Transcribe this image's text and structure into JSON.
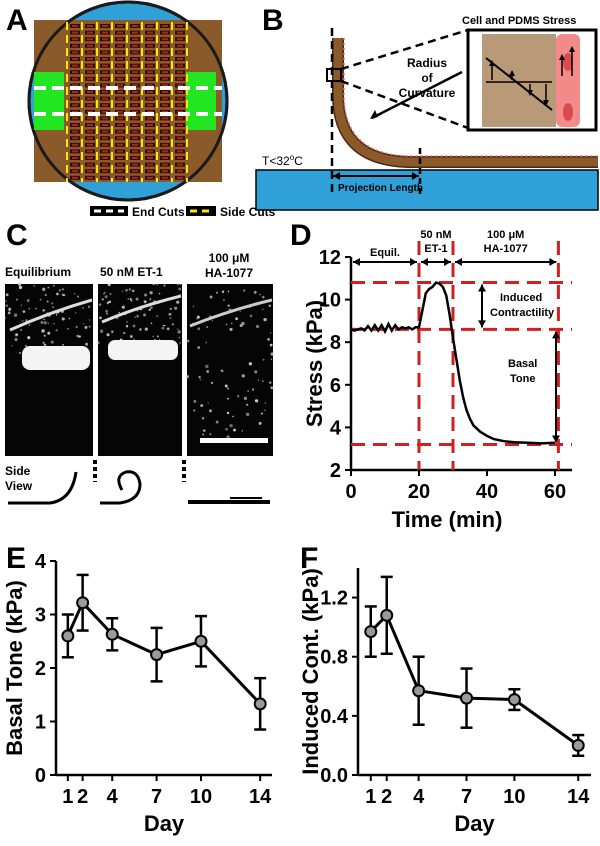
{
  "panels": {
    "a": "A",
    "b": "B",
    "c": "C",
    "d": "D",
    "e": "E",
    "f": "F"
  },
  "colors": {
    "brown": "#8a5a2b",
    "green": "#23e623",
    "blue": "#2fa0d8",
    "red": "#d21f1f",
    "yellow": "#ffe600",
    "pink": "#f28a8a",
    "tan": "#b89a78"
  },
  "panel_a": {
    "legend_end": "End Cuts",
    "legend_side": "Side Cuts"
  },
  "panel_b": {
    "inset_title": "Cell and PDMS Stress",
    "radius_l1": "Radius",
    "radius_l2": "of",
    "radius_l3": "Curvature",
    "temp": "T<32",
    "temp_sup": "o",
    "temp_unit": "C",
    "projection": "Projection Length"
  },
  "panel_c": {
    "lbl_equil": "Equilibrium",
    "lbl_et1": "50 nM ET-1",
    "lbl_ha_l1": "100 μM",
    "lbl_ha_l2": "HA-1077",
    "side_l1": "Side",
    "side_l2": "View"
  },
  "panel_d": {
    "phase_equil": "Equil.",
    "phase_et1_l1": "50 nM",
    "phase_et1_l2": "ET-1",
    "phase_ha_l1": "100 μM",
    "phase_ha_l2": "HA-1077",
    "induced_l1": "Induced",
    "induced_l2": "Contractility",
    "basal_l1": "Basal",
    "basal_l2": "Tone"
  },
  "chart_data": [
    {
      "type": "line",
      "panel": "D",
      "xlabel": "Time (min)",
      "ylabel": "Stress (kPa)",
      "xlim": [
        0,
        65
      ],
      "ylim": [
        2,
        12
      ],
      "xticks": [
        0,
        20,
        40,
        60
      ],
      "yticks": [
        2,
        4,
        6,
        8,
        10,
        12
      ],
      "x": [
        0,
        1,
        2,
        3,
        4,
        5,
        6,
        7,
        8,
        9,
        10,
        11,
        12,
        13,
        14,
        15,
        16,
        17,
        18,
        19,
        20,
        21,
        22,
        23,
        24,
        25,
        26,
        27,
        28,
        29,
        30,
        31,
        32,
        33,
        34,
        35,
        36,
        38,
        40,
        42,
        45,
        48,
        52,
        56,
        60
      ],
      "y": [
        8.6,
        8.55,
        8.6,
        8.65,
        8.55,
        8.75,
        8.55,
        8.8,
        8.55,
        8.8,
        8.5,
        8.85,
        8.55,
        8.8,
        8.6,
        8.7,
        8.65,
        8.7,
        8.6,
        8.7,
        8.7,
        9.5,
        10.3,
        10.5,
        10.6,
        10.8,
        10.75,
        10.6,
        10.2,
        9.3,
        8.2,
        7.2,
        6.2,
        5.4,
        4.8,
        4.4,
        4.1,
        3.8,
        3.6,
        3.45,
        3.35,
        3.3,
        3.28,
        3.25,
        3.28
      ],
      "markers": {
        "vertical": [
          20,
          30,
          61
        ],
        "horizontal": [
          10.8,
          8.6,
          3.2
        ]
      }
    },
    {
      "type": "line",
      "panel": "E",
      "xlabel": "Day",
      "ylabel": "Basal Tone (kPa)",
      "xlim": [
        0.2,
        14.8
      ],
      "ylim": [
        0,
        4
      ],
      "xticks": [
        1,
        2,
        4,
        7,
        10,
        14
      ],
      "yticks": [
        0,
        1,
        2,
        3,
        4
      ],
      "x": [
        1,
        2,
        4,
        7,
        10,
        14
      ],
      "y": [
        2.6,
        3.22,
        2.63,
        2.25,
        2.5,
        1.33
      ],
      "err": [
        0.4,
        0.52,
        0.3,
        0.5,
        0.47,
        0.48
      ]
    },
    {
      "type": "line",
      "panel": "F",
      "xlabel": "Day",
      "ylabel": "Induced Cont. (kPa)",
      "xlim": [
        0.2,
        14.8
      ],
      "ylim": [
        0,
        1.4
      ],
      "xticks": [
        1,
        2,
        4,
        7,
        10,
        14
      ],
      "yticks": [
        0.0,
        0.4,
        0.8,
        1.2
      ],
      "ytick_labels": [
        "0.0",
        "0.4",
        "0.8",
        "1.2"
      ],
      "x": [
        1,
        2,
        4,
        7,
        10,
        14
      ],
      "y": [
        0.97,
        1.08,
        0.57,
        0.52,
        0.51,
        0.2
      ],
      "err": [
        0.17,
        0.26,
        0.23,
        0.2,
        0.07,
        0.07
      ]
    }
  ]
}
